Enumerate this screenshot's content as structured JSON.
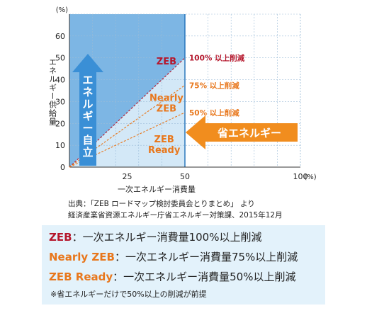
{
  "chart_data": {
    "type": "line",
    "y_unit": "(%)",
    "x_unit": "(%)",
    "ylabel": "エネルギー供給量",
    "xlabel": "一次エネルギー消費量",
    "xlim": [
      0,
      100
    ],
    "ylim": [
      0,
      70
    ],
    "x_ticks": [
      "25",
      "50",
      "100"
    ],
    "y_ticks": [
      "0",
      "10",
      "20",
      "30",
      "40",
      "50",
      "60"
    ],
    "grid": true,
    "colors": {
      "zeb": "#b5172c",
      "nearly": "#e8771c",
      "ready": "#e8771c",
      "shade_dark": "#7db6e4",
      "shade_light": "#d3e8f7",
      "arrow_blue": "#3a8fd6",
      "arrow_orange": "#f18d1e"
    },
    "series": [
      {
        "name": "ZEB",
        "threshold": "100% 以上削減",
        "x": [
          0,
          50
        ],
        "y": [
          0,
          50
        ]
      },
      {
        "name": "Nearly ZEB",
        "threshold": "75% 以上削減",
        "x": [
          0,
          50
        ],
        "y": [
          0,
          37.5
        ]
      },
      {
        "name": "ZEB Ready",
        "threshold": "50% 以上削減",
        "x": [
          0,
          50
        ],
        "y": [
          0,
          25
        ]
      }
    ],
    "annotations": {
      "zeb": "ZEB",
      "nearly_line1": "Nearly",
      "nearly_line2": "ZEB",
      "ready_line1": "ZEB",
      "ready_line2": "Ready",
      "self_sufficiency": "エネルギー自立",
      "energy_saving": "省エネルギー"
    }
  },
  "source": {
    "line1": "出典：「ZEB ロードマップ検討委員会とりまとめ」 より",
    "line2": "経済産業省資源エネルギー庁省エネルギー対策課、2015年12月"
  },
  "legend": {
    "rows": [
      {
        "term": "ZEB",
        "desc": "：一次エネルギー消費量100%以上削減",
        "color": "#b5172c"
      },
      {
        "term": "Nearly ZEB",
        "desc": "：一次エネルギー消費量75%以上削減",
        "color": "#e8771c"
      },
      {
        "term": "ZEB Ready",
        "desc": "：一次エネルギー消費量50%以上削減",
        "color": "#e8771c"
      }
    ],
    "note": "※省エネルギーだけで50%以上の削減が前提"
  }
}
